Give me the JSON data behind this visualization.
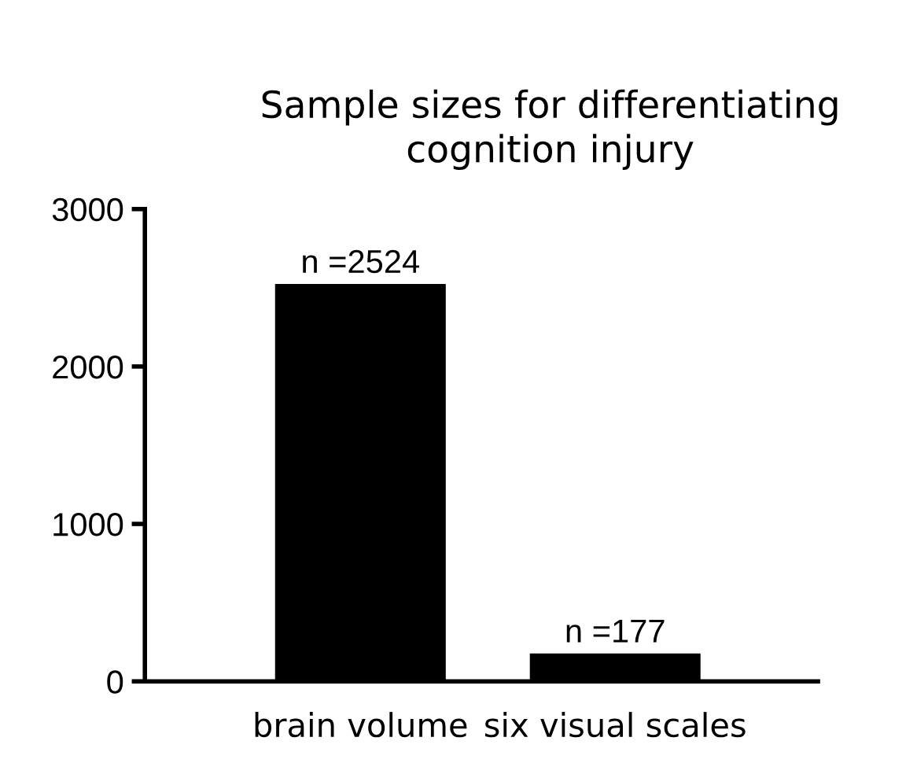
{
  "chart_data": {
    "type": "bar",
    "title": "Sample sizes for differentiating\ncognition injury",
    "categories": [
      "brain volume",
      "six visual scales"
    ],
    "values": [
      2524,
      177
    ],
    "color": "#000000",
    "value_labels": [
      "n =2524",
      "n =177"
    ],
    "ylim": [
      0,
      3000
    ],
    "yticks": [
      0,
      1000,
      2000,
      3000
    ],
    "grid": false,
    "legend": false
  }
}
